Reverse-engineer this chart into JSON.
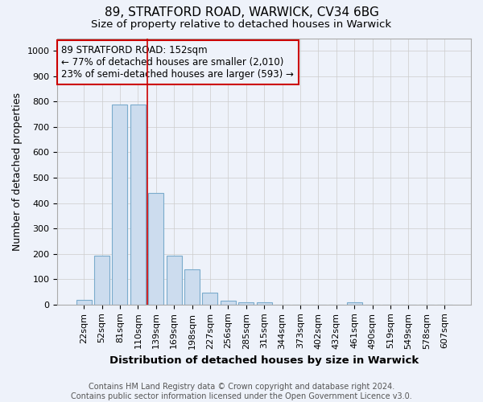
{
  "title1": "89, STRATFORD ROAD, WARWICK, CV34 6BG",
  "title2": "Size of property relative to detached houses in Warwick",
  "xlabel": "Distribution of detached houses by size in Warwick",
  "ylabel": "Number of detached properties",
  "footnote1": "Contains HM Land Registry data © Crown copyright and database right 2024.",
  "footnote2": "Contains public sector information licensed under the Open Government Licence v3.0.",
  "categories": [
    "22sqm",
    "52sqm",
    "81sqm",
    "110sqm",
    "139sqm",
    "169sqm",
    "198sqm",
    "227sqm",
    "256sqm",
    "285sqm",
    "315sqm",
    "344sqm",
    "373sqm",
    "402sqm",
    "432sqm",
    "461sqm",
    "490sqm",
    "519sqm",
    "549sqm",
    "578sqm",
    "607sqm"
  ],
  "values": [
    18,
    193,
    790,
    790,
    440,
    193,
    140,
    48,
    15,
    10,
    10,
    0,
    0,
    0,
    0,
    8,
    0,
    0,
    0,
    0,
    0
  ],
  "bar_color": "#ccdcee",
  "bar_edge_color": "#7aabcc",
  "vline_x": 3.5,
  "vline_color": "#cc0000",
  "annotation_box_text": "89 STRATFORD ROAD: 152sqm\n← 77% of detached houses are smaller (2,010)\n23% of semi-detached houses are larger (593) →",
  "annotation_box_color": "#cc0000",
  "ylim": [
    0,
    1050
  ],
  "yticks": [
    0,
    100,
    200,
    300,
    400,
    500,
    600,
    700,
    800,
    900,
    1000
  ],
  "background_color": "#eef2fa",
  "grid_color": "#cccccc",
  "title1_fontsize": 11,
  "title2_fontsize": 9.5,
  "xlabel_fontsize": 9.5,
  "ylabel_fontsize": 9,
  "tick_fontsize": 8,
  "annotation_fontsize": 8.5,
  "footnote_fontsize": 7
}
